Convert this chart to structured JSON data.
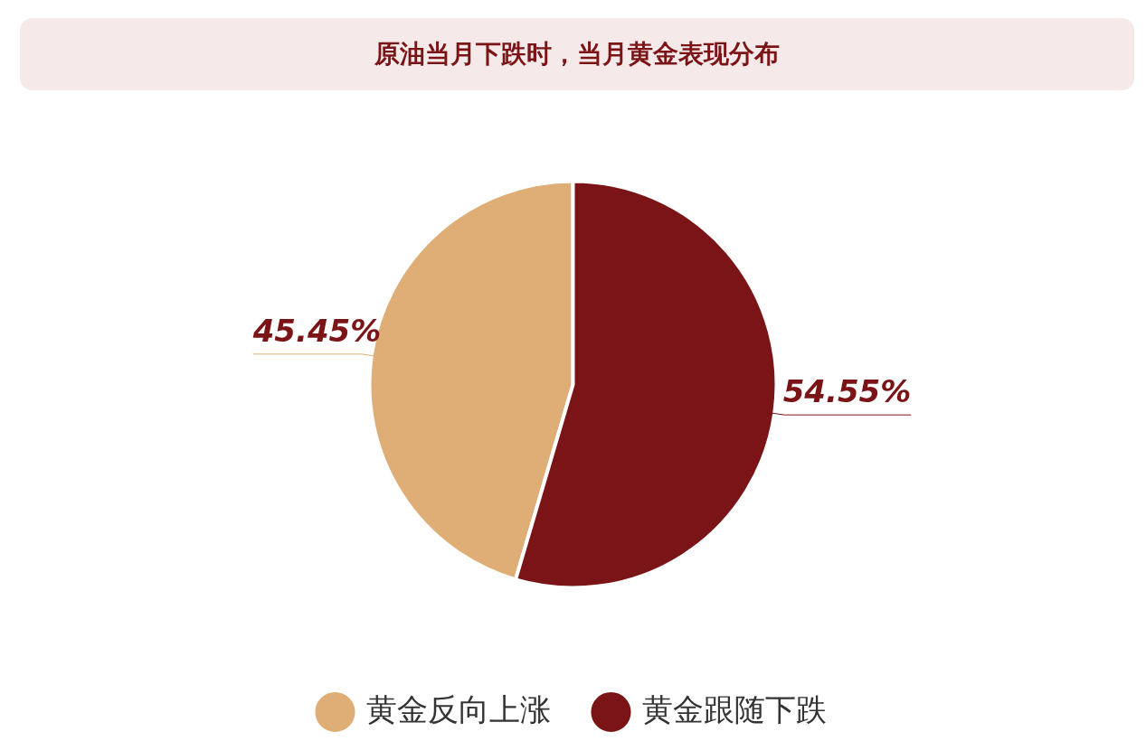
{
  "chart_data": {
    "type": "pie",
    "title": "原油当月下跌时，当月黄金表现分布",
    "categories": [
      "黄金反向上涨",
      "黄金跟随下跌"
    ],
    "values": [
      45.45,
      54.55
    ],
    "colors": [
      "#dfae76",
      "#7b1416"
    ],
    "value_labels": [
      "45.45%",
      "54.55%"
    ],
    "legend": "bottom"
  }
}
